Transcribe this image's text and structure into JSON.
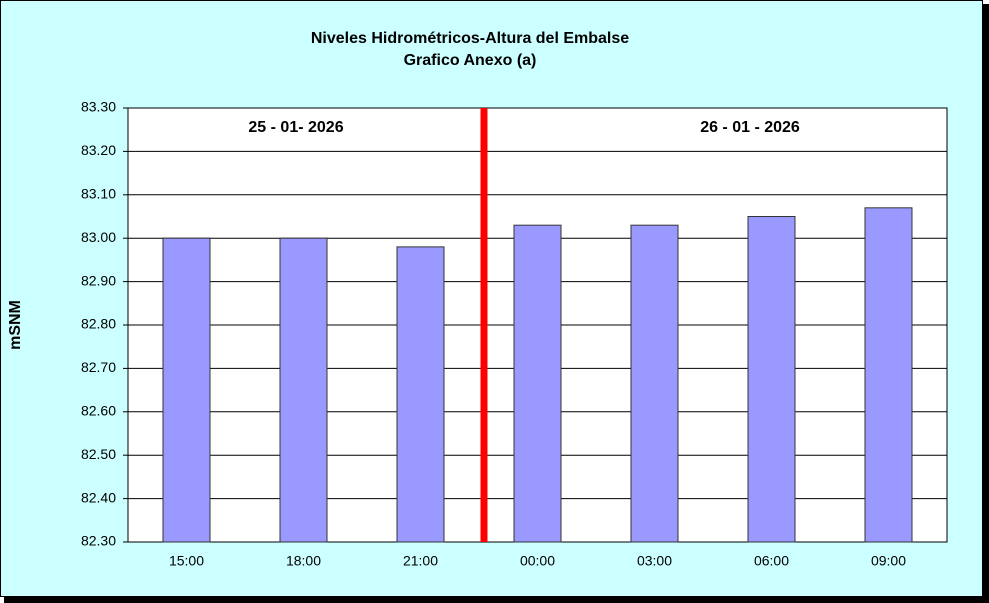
{
  "chart_data": {
    "type": "bar",
    "title": "Niveles Hidrométricos-Altura del Embalse",
    "subtitle": "Grafico Anexo (a)",
    "y_label": "mSNM",
    "annotations": [
      "25 - 01- 2026",
      "26 - 01 - 2026"
    ],
    "categories": [
      "15:00",
      "18:00",
      "21:00",
      "00:00",
      "03:00",
      "06:00",
      "09:00"
    ],
    "values": [
      83.0,
      83.0,
      82.98,
      83.03,
      83.03,
      83.05,
      83.07
    ],
    "color": "#9999ff",
    "ylim": [
      82.3,
      83.3
    ],
    "yticks": [
      {
        "value": 82.3,
        "label": "82.30"
      },
      {
        "value": 82.4,
        "label": "82.40"
      },
      {
        "value": 82.5,
        "label": "82.50"
      },
      {
        "value": 82.6,
        "label": "82.60"
      },
      {
        "value": 82.7,
        "label": "82.70"
      },
      {
        "value": 82.8,
        "label": "82.80"
      },
      {
        "value": 82.9,
        "label": "82.90"
      },
      {
        "value": 83.0,
        "label": "83.00"
      },
      {
        "value": 83.1,
        "label": "83.10"
      },
      {
        "value": 83.2,
        "label": "83.20"
      },
      {
        "value": 83.3,
        "label": "83.30"
      }
    ],
    "grid": true
  }
}
